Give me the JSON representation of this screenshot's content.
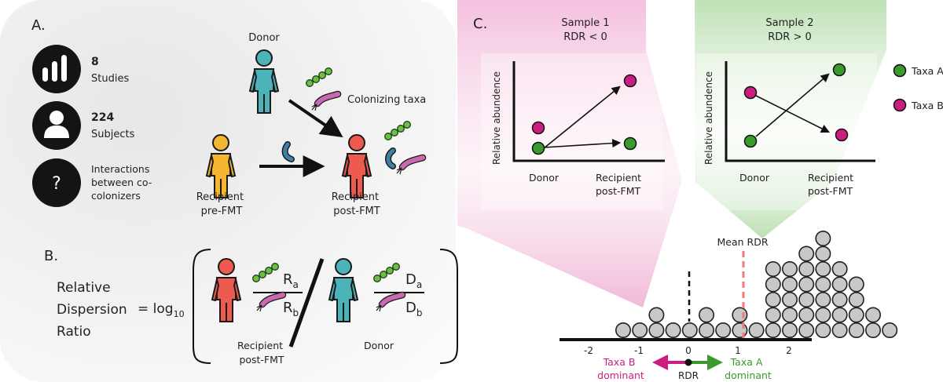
{
  "panel_a": {
    "label": "A.",
    "stats": [
      {
        "value": "8",
        "caption": "Studies",
        "icon": "bar-chart-icon"
      },
      {
        "value": "224",
        "caption": "Subjects",
        "icon": "person-icon"
      },
      {
        "value": "",
        "caption_lines": [
          "Interactions",
          "between co-",
          "colonizers"
        ],
        "icon": "question-icon"
      }
    ],
    "donor": "Donor",
    "colonizing_taxa": "Colonizing taxa",
    "recipient_pre": [
      "Recipient",
      "pre-FMT"
    ],
    "recipient_post": [
      "Recipient",
      "post-FMT"
    ]
  },
  "panel_b": {
    "label": "B.",
    "term_lines": [
      "Relative",
      "Dispersion",
      "Ratio"
    ],
    "equals": "= log",
    "log_base": "10",
    "ra": "R",
    "ra_sub": "a",
    "rb": "R",
    "rb_sub": "b",
    "da": "D",
    "da_sub": "a",
    "db": "D",
    "db_sub": "b",
    "recipient_post": [
      "Recipient",
      "post-FMT"
    ],
    "donor": "Donor"
  },
  "panel_c": {
    "label": "C.",
    "colors": {
      "taxa_a": "#3a9b2c",
      "taxa_b": "#cc1e80",
      "mean_line": "#f07a7a",
      "dot_fill": "#c8c8c8"
    },
    "legend": [
      {
        "name": "Taxa A",
        "color": "#3a9b2c"
      },
      {
        "name": "Taxa B",
        "color": "#cc1e80"
      }
    ],
    "sample1": {
      "title": "Sample 1",
      "subtitle": "RDR < 0",
      "ylabel": "Relative abundence",
      "x_labels": [
        "Donor",
        "Recipient post-FMT"
      ]
    },
    "sample2": {
      "title": "Sample 2",
      "subtitle": "RDR > 0",
      "ylabel": "Relative abundence",
      "x_labels": [
        "Donor",
        "Recipient post-FMT"
      ]
    },
    "mean_label": "Mean RDR",
    "axis_ticks": [
      "-2",
      "-1",
      "0",
      "1",
      "2"
    ],
    "rdr_label": "RDR",
    "left_dir": [
      "Taxa B",
      "dominant"
    ],
    "right_dir": [
      "Taxa A",
      "dominant"
    ]
  }
}
